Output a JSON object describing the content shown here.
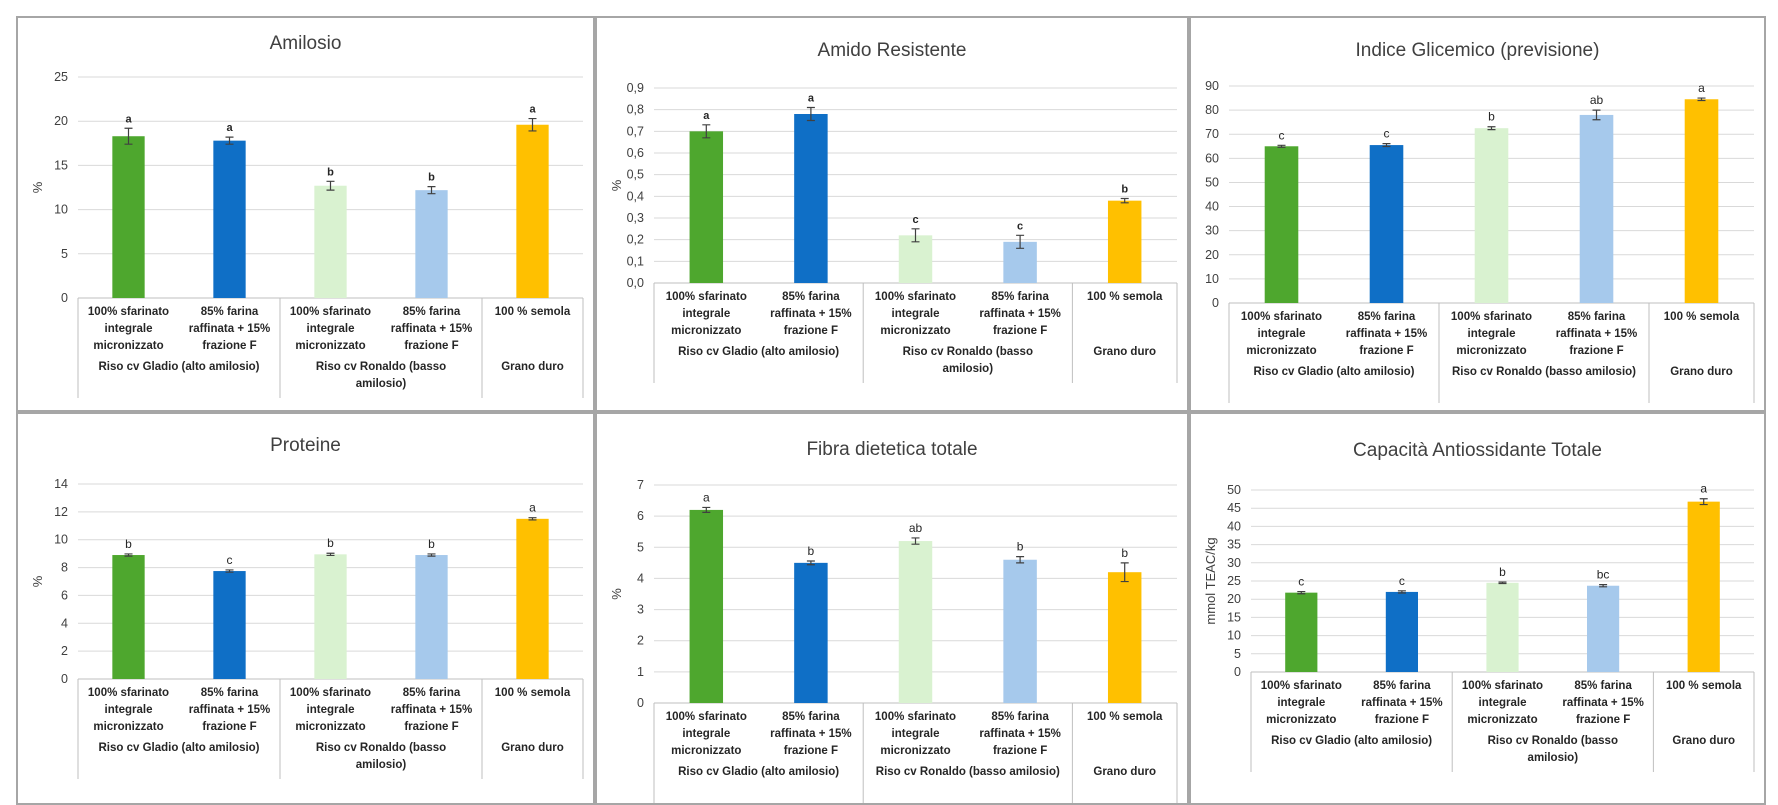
{
  "colors": [
    "#4ea72e",
    "#0f6fc6",
    "#d9f2d0",
    "#a6c9ec",
    "#ffc000"
  ],
  "categories": [
    [
      "100% sfarinato",
      "integrale",
      "micronizzato"
    ],
    [
      "85% farina",
      "raffinata + 15%",
      "frazione F"
    ],
    [
      "100% sfarinato",
      "integrale",
      "micronizzato"
    ],
    [
      "85% farina",
      "raffinata + 15%",
      "frazione F"
    ],
    [
      "100 % semola"
    ]
  ],
  "chart_data": [
    {
      "type": "bar",
      "title": "Amilosio",
      "ylabel": "%",
      "ylim": [
        0,
        25
      ],
      "ytick_step": 5,
      "decimal_comma": false,
      "values": [
        18.3,
        17.8,
        12.7,
        12.2,
        19.6
      ],
      "errors": [
        0.9,
        0.4,
        0.5,
        0.4,
        0.7
      ],
      "letters": [
        "a",
        "a",
        "b",
        "b",
        "a"
      ],
      "bold_letters": true,
      "groups": [
        [
          "Riso cv Gladio (alto amilosio)"
        ],
        [
          "Riso cv Ronaldo (basso",
          "amilosio)"
        ],
        [
          "Grano duro"
        ]
      ],
      "grid": true
    },
    {
      "type": "bar",
      "title": "Amido Resistente",
      "ylabel": "%",
      "ylim": [
        0,
        0.9
      ],
      "ytick_step": 0.1,
      "decimal_comma": true,
      "values": [
        0.7,
        0.78,
        0.22,
        0.19,
        0.38
      ],
      "errors": [
        0.03,
        0.03,
        0.03,
        0.03,
        0.01
      ],
      "letters": [
        "a",
        "a",
        "c",
        "c",
        "b"
      ],
      "bold_letters": true,
      "groups": [
        [
          "Riso cv Gladio (alto amilosio)"
        ],
        [
          "Riso cv Ronaldo (basso",
          "amilosio)"
        ],
        [
          "Grano duro"
        ]
      ],
      "grid": true
    },
    {
      "type": "bar",
      "title": "Indice Glicemico (previsione)",
      "ylabel": "",
      "ylim": [
        0,
        90
      ],
      "ytick_step": 10,
      "decimal_comma": false,
      "values": [
        65,
        65.5,
        72.5,
        78,
        84.5
      ],
      "errors": [
        0.4,
        0.6,
        0.6,
        2,
        0.5
      ],
      "letters": [
        "c",
        "c",
        "b",
        "ab",
        "a"
      ],
      "bold_letters": false,
      "groups": [
        [
          "Riso cv Gladio (alto amilosio)"
        ],
        [
          "Riso cv Ronaldo (basso amilosio)"
        ],
        [
          "Grano duro"
        ]
      ],
      "grid": true
    },
    {
      "type": "bar",
      "title": "Proteine",
      "ylabel": "%",
      "ylim": [
        0,
        14
      ],
      "ytick_step": 2,
      "decimal_comma": false,
      "values": [
        8.9,
        7.75,
        8.95,
        8.9,
        11.5
      ],
      "errors": [
        0.08,
        0.08,
        0.08,
        0.08,
        0.08
      ],
      "letters": [
        "b",
        "c",
        "b",
        "b",
        "a"
      ],
      "bold_letters": false,
      "groups": [
        [
          "Riso cv Gladio (alto amilosio)"
        ],
        [
          "Riso cv Ronaldo (basso",
          "amilosio)"
        ],
        [
          "Grano duro"
        ]
      ],
      "grid": true
    },
    {
      "type": "bar",
      "title": "Fibra dietetica totale",
      "ylabel": "%",
      "ylim": [
        0,
        7
      ],
      "ytick_step": 1,
      "decimal_comma": false,
      "values": [
        6.2,
        4.5,
        5.2,
        4.6,
        4.2
      ],
      "errors": [
        0.08,
        0.06,
        0.1,
        0.1,
        0.3
      ],
      "letters": [
        "a",
        "b",
        "ab",
        "b",
        "b"
      ],
      "bold_letters": false,
      "groups": [
        [
          "Riso cv Gladio (alto amilosio)"
        ],
        [
          "Riso cv Ronaldo (basso amilosio)"
        ],
        [
          "Grano duro"
        ]
      ],
      "grid": true
    },
    {
      "type": "bar",
      "title": "Capacità Antiossidante Totale",
      "ylabel": "mmol TEAC/kg",
      "ylim": [
        0,
        50
      ],
      "ytick_step": 5,
      "decimal_comma": false,
      "values": [
        21.8,
        22.0,
        24.5,
        23.7,
        46.8
      ],
      "errors": [
        0.3,
        0.3,
        0.2,
        0.3,
        0.8
      ],
      "letters": [
        "c",
        "c",
        "b",
        "bc",
        "a"
      ],
      "bold_letters": false,
      "groups": [
        [
          "Riso cv Gladio (alto amilosio)"
        ],
        [
          "Riso cv Ronaldo (basso",
          "amilosio)"
        ],
        [
          "Grano duro"
        ]
      ],
      "grid": true
    }
  ]
}
